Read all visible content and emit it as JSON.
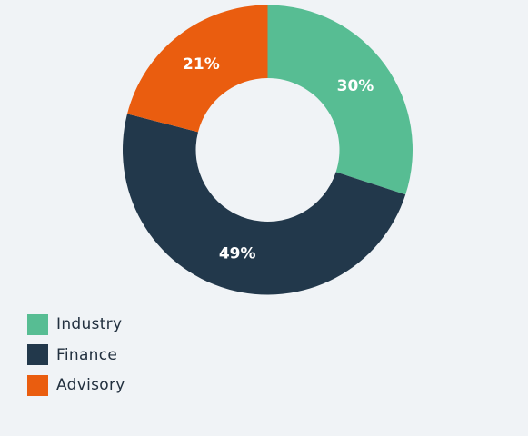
{
  "chart_data": {
    "type": "pie",
    "donut": true,
    "categories": [
      "Industry",
      "Finance",
      "Advisory"
    ],
    "values": [
      30,
      49,
      21
    ],
    "labels": [
      "30%",
      "49%",
      "21%"
    ],
    "colors": [
      "#57bd93",
      "#22384b",
      "#ea5d0f"
    ],
    "legend": "bottom-left",
    "start_angle": "12 o'clock",
    "direction": "clockwise"
  }
}
